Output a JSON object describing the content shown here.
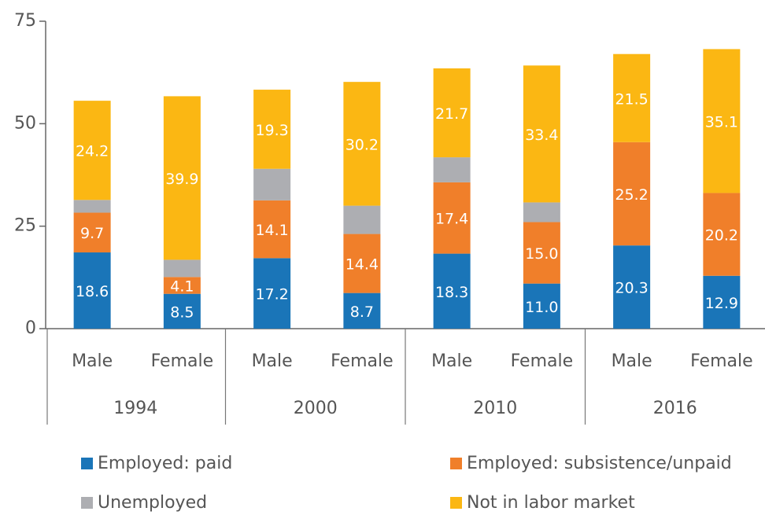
{
  "chart_data": {
    "type": "stacked_bar",
    "categories": [
      "Male",
      "Female",
      "Male",
      "Female",
      "Male",
      "Female",
      "Male",
      "Female"
    ],
    "groups": [
      "1994",
      "2000",
      "2010",
      "2016"
    ],
    "series": [
      {
        "name": "Employed: paid",
        "color": "#1a75b8",
        "values": [
          18.6,
          8.5,
          17.2,
          8.7,
          18.3,
          11.0,
          20.3,
          12.9
        ],
        "value_labels": [
          "18.6",
          "8.5",
          "17.2",
          "8.7",
          "18.3",
          "11.0",
          "20.3",
          "12.9"
        ]
      },
      {
        "name": "Employed: subsistence/unpaid",
        "color": "#f07f2a",
        "values": [
          9.7,
          4.1,
          14.1,
          14.4,
          17.4,
          15.0,
          25.2,
          20.2
        ],
        "value_labels": [
          "9.7",
          "4.1",
          "14.1",
          "14.4",
          "17.4",
          "15.0",
          "25.2",
          "20.2"
        ]
      },
      {
        "name": "Unemployed",
        "color": "#adaeb2",
        "values": [
          3.1,
          4.2,
          7.7,
          6.9,
          6.1,
          4.8,
          0,
          0
        ]
      },
      {
        "name": "Not in labor market",
        "color": "#fbb713",
        "values": [
          24.2,
          39.9,
          19.3,
          30.2,
          21.7,
          33.4,
          21.5,
          35.1
        ],
        "value_labels": [
          "24.2",
          "39.9",
          "19.3",
          "30.2",
          "21.7",
          "33.4",
          "21.5",
          "35.1"
        ]
      }
    ],
    "ylim": [
      0,
      75
    ],
    "yticks": [
      0,
      25,
      50,
      75
    ]
  }
}
